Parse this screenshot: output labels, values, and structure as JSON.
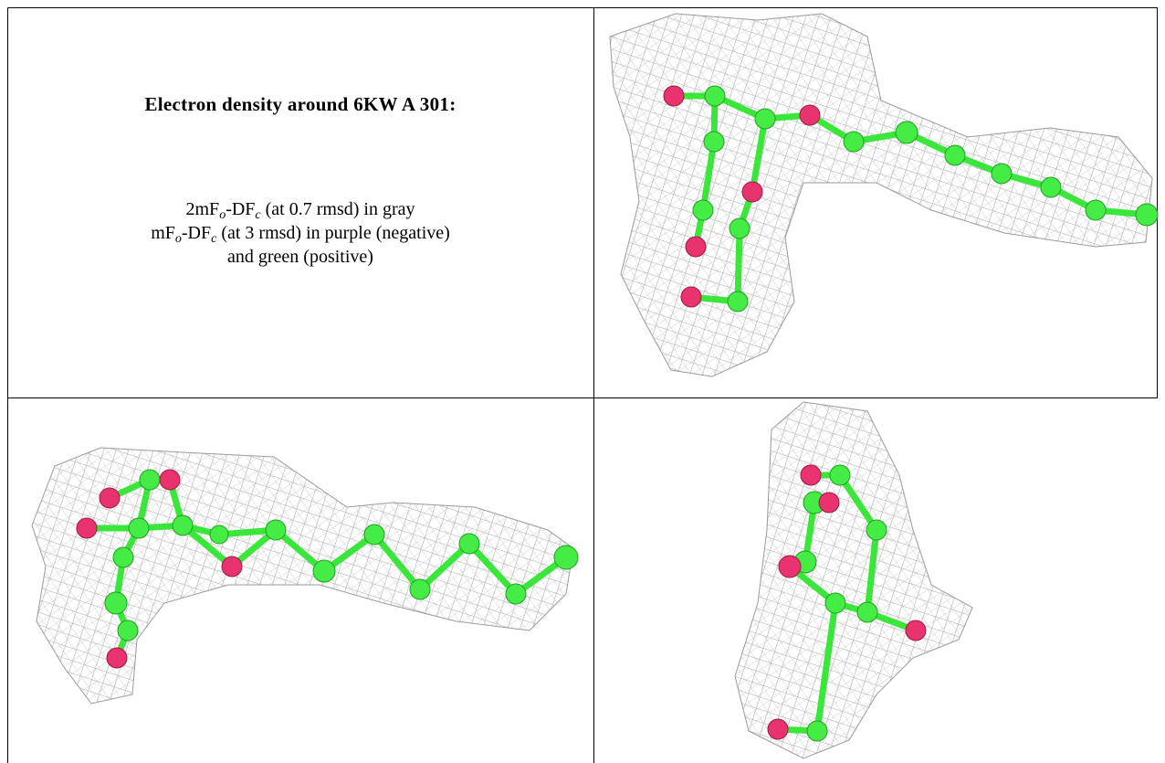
{
  "caption": {
    "title": "Electron density around 6KW A 301:",
    "lines": [
      [
        "2mF",
        "o",
        "-DF",
        "c",
        " (at 0.7 rmsd) in gray"
      ],
      [
        "mF",
        "o",
        "-DF",
        "c",
        " (at 3 rmsd) in purple (negative)"
      ],
      [
        "and green (positive)"
      ]
    ]
  }
}
